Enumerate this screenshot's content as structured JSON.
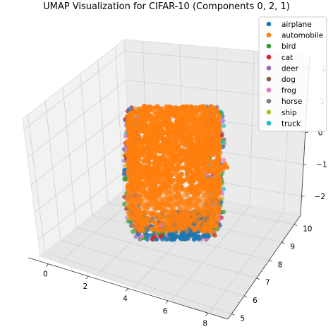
{
  "chart_data": {
    "type": "scatter",
    "projection": "3d",
    "title": "UMAP Visualization for CIFAR-10 (Components 0, 2, 1)",
    "xlabel": "",
    "ylabel": "",
    "zlabel": "",
    "xlim": [
      -1,
      9
    ],
    "ylim": [
      4.7,
      10.5
    ],
    "zlim": [
      -2.6,
      2.4
    ],
    "x_ticks": [
      "0",
      "2",
      "4",
      "6",
      "8"
    ],
    "y_ticks": [
      "5",
      "6",
      "7",
      "8",
      "9",
      "10"
    ],
    "z_ticks": [
      "−2",
      "−1",
      "0",
      "1",
      "2"
    ],
    "grid": true,
    "legend_position": "top-right",
    "series": [
      {
        "name": "airplane",
        "color": "#1f77b4"
      },
      {
        "name": "automobile",
        "color": "#ff7f0e"
      },
      {
        "name": "bird",
        "color": "#2ca02c"
      },
      {
        "name": "cat",
        "color": "#d62728"
      },
      {
        "name": "deer",
        "color": "#9467bd"
      },
      {
        "name": "dog",
        "color": "#8c564b"
      },
      {
        "name": "frog",
        "color": "#e377c2"
      },
      {
        "name": "horse",
        "color": "#7f7f7f"
      },
      {
        "name": "ship",
        "color": "#bcbd22"
      },
      {
        "name": "truck",
        "color": "#17becf"
      }
    ],
    "point_cloud": {
      "x_range": [
        0.2,
        6.4
      ],
      "y_range": [
        6.2,
        9.6
      ],
      "z_range": [
        -2.4,
        1.9
      ],
      "note_outlier_series": "automobile"
    }
  }
}
